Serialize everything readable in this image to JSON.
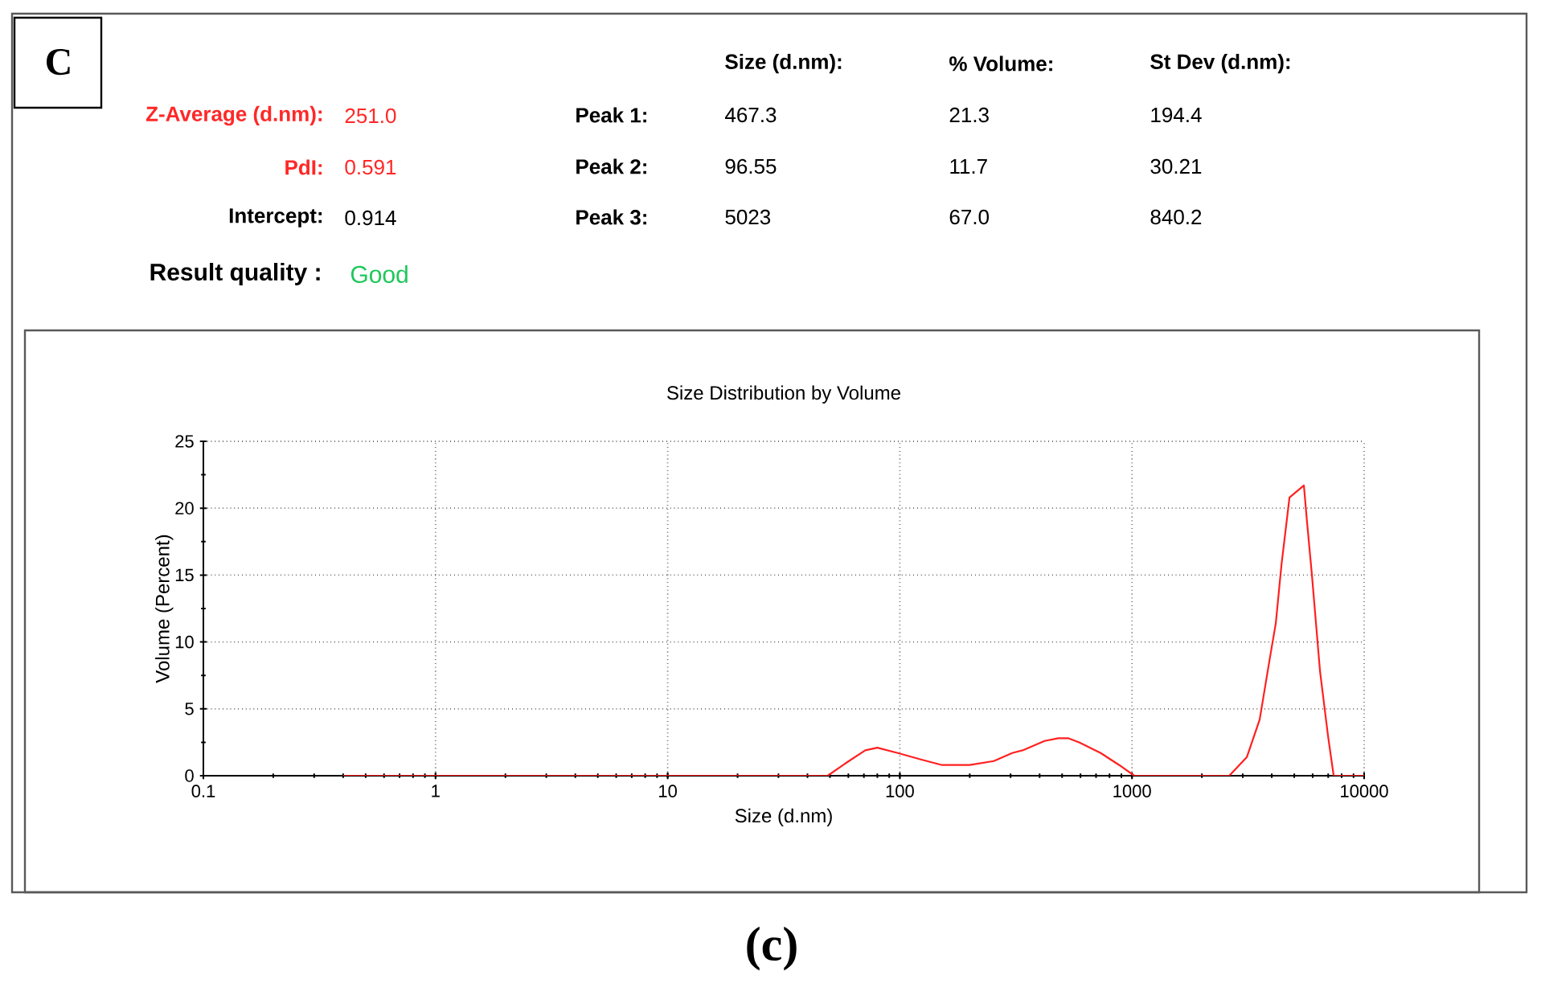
{
  "chart_data": {
    "type": "line",
    "title": "Size Distribution by Volume",
    "xlabel": "Size (d.nm)",
    "ylabel": "Volume (Percent)",
    "log": "x",
    "xlim": [
      0.1,
      10000
    ],
    "xticks": [
      0.1,
      1,
      10,
      100,
      1000,
      10000
    ],
    "ylim": [
      0,
      25
    ],
    "yticks": [
      0,
      5,
      10,
      15,
      20,
      25
    ],
    "grid": true,
    "marker": "none",
    "line_style": "solid",
    "series": [
      {
        "color": "#ff2020",
        "x": [
          0.4,
          48.9,
          58,
          71,
          80,
          98,
          124,
          152,
          200,
          254,
          305,
          338,
          420,
          481,
          533,
          592,
          733,
          881,
          1023,
          2624,
          3126,
          3548,
          3908,
          4163,
          4406,
          4769,
          5500,
          5673,
          5957,
          6456,
          6986,
          7390,
          10000
        ],
        "values": [
          0,
          0,
          0.9,
          1.9,
          2.1,
          1.7,
          1.2,
          0.8,
          0.8,
          1.1,
          1.7,
          1.9,
          2.6,
          2.8,
          2.8,
          2.5,
          1.7,
          0.8,
          0,
          0,
          1.4,
          4.2,
          8.6,
          11.4,
          15.8,
          20.8,
          21.7,
          19.0,
          15.0,
          7.8,
          3.0,
          0,
          0
        ]
      }
    ],
    "annotations": [
      "C",
      "Z-Average (d.nm):",
      "251.0",
      "PdI:",
      "0.591",
      "Intercept:",
      "0.914",
      "Result quality :",
      "Good",
      "Size (d.nm):",
      "% Volume:",
      "St Dev (d.nm):",
      "Peak 1:",
      "467.3",
      "21.3",
      "194.4",
      "Peak 2:",
      "96.55",
      "11.7",
      "30.21",
      "Peak 3:",
      "5023",
      "67.0",
      "840.2",
      "(c)"
    ]
  }
}
